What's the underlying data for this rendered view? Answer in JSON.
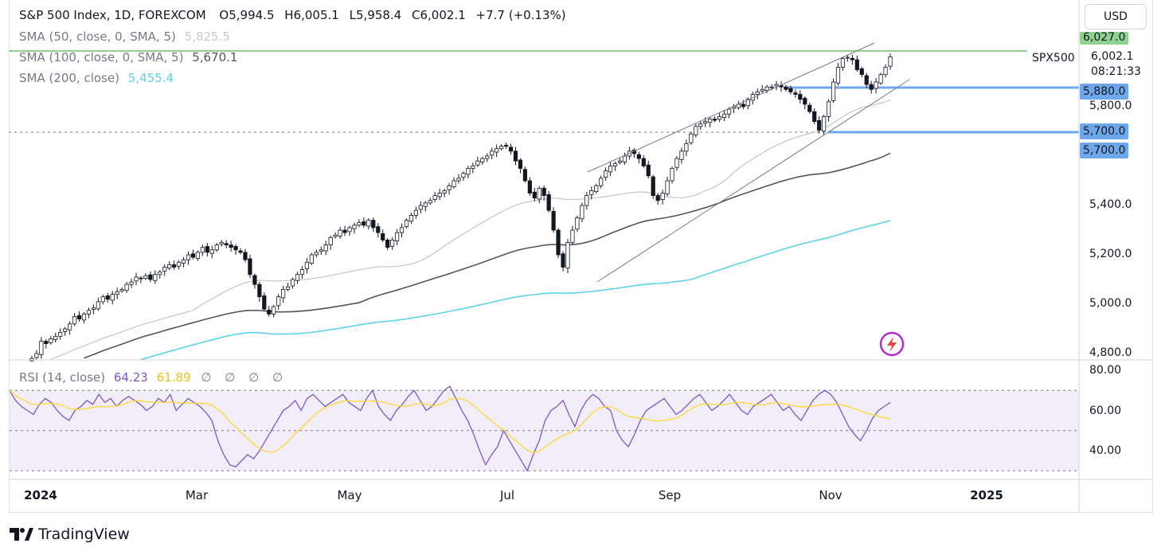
{
  "header": {
    "symbol_line": "S&P 500 Index, 1D, FOREXCOM",
    "ohlc": {
      "o_label": "O",
      "o": "5,994.5",
      "h_label": "H",
      "h": "6,005.1",
      "l_label": "L",
      "l": "5,958.4",
      "c_label": "C",
      "c": "6,002.1",
      "change": "+7.7 (+0.13%)"
    },
    "indicators": [
      {
        "label": "SMA (50, close, 0, SMA, 5)",
        "value": "5,825.5",
        "color": "#c9c9c9"
      },
      {
        "label": "SMA (100, close, 0, SMA, 5)",
        "value": "5,670.1",
        "color": "#555555"
      },
      {
        "label": "SMA (200, close)",
        "value": "5,455.4",
        "color": "#5fd3e6"
      }
    ]
  },
  "currency_button": "USD",
  "symbol_tag": "SPX500",
  "price_tags": {
    "resistance": "6,027.0",
    "last_price": "6,002.1",
    "countdown": "08:21:33",
    "support_1": "5,880.0",
    "support_2": "5,700.0",
    "support_2b": "5,700.0"
  },
  "price_axis": [
    "5,800.0",
    "5,400.0",
    "5,200.0",
    "5,000.0",
    "4,800.0"
  ],
  "rsi": {
    "label": "RSI (14, close)",
    "value": "64.23",
    "ma_value": "61.89",
    "placeholders": [
      "∅",
      "∅",
      "∅",
      "∅"
    ],
    "axis": [
      "80.00",
      "60.00",
      "40.00"
    ],
    "line_color": "#7e57c2",
    "ma_color": "#fdd835"
  },
  "date_axis": [
    "2024",
    "Mar",
    "May",
    "Jul",
    "Sep",
    "Nov",
    "2025"
  ],
  "brand": "TradingView",
  "colors": {
    "resistance_line": "#8fd18f",
    "support_line": "#6ea8ea",
    "sma50": "#c9c9c9",
    "sma100": "#555555",
    "sma200": "#5fd3e6",
    "bull": "#131722",
    "bear": "#131722"
  },
  "chart_data": [
    {
      "type": "candlestick",
      "title": "S&P 500 Index, 1D, FOREXCOM",
      "y_unit": "USD",
      "ylim": [
        4780,
        6080
      ],
      "x_labels": [
        "2024",
        "Mar",
        "May",
        "Jul",
        "Sep",
        "Nov",
        "2025"
      ],
      "closes": [
        4770,
        4780,
        4800,
        4850,
        4840,
        4860,
        4870,
        4885,
        4900,
        4920,
        4950,
        4940,
        4960,
        4975,
        4985,
        5010,
        5030,
        5020,
        5040,
        5050,
        5060,
        5080,
        5090,
        5110,
        5105,
        5115,
        5100,
        5120,
        5130,
        5150,
        5160,
        5150,
        5170,
        5180,
        5200,
        5190,
        5210,
        5230,
        5210,
        5220,
        5240,
        5250,
        5240,
        5230,
        5220,
        5210,
        5180,
        5120,
        5080,
        5030,
        4980,
        4960,
        4990,
        5030,
        5060,
        5070,
        5100,
        5120,
        5140,
        5170,
        5200,
        5210,
        5220,
        5240,
        5270,
        5280,
        5300,
        5290,
        5310,
        5320,
        5330,
        5320,
        5340,
        5310,
        5290,
        5260,
        5230,
        5260,
        5290,
        5310,
        5340,
        5360,
        5380,
        5400,
        5410,
        5420,
        5440,
        5450,
        5460,
        5480,
        5500,
        5510,
        5530,
        5550,
        5560,
        5580,
        5590,
        5600,
        5620,
        5630,
        5640,
        5640,
        5620,
        5580,
        5550,
        5500,
        5450,
        5430,
        5470,
        5440,
        5380,
        5300,
        5200,
        5150,
        5250,
        5300,
        5350,
        5400,
        5440,
        5460,
        5480,
        5510,
        5540,
        5560,
        5570,
        5580,
        5600,
        5620,
        5610,
        5590,
        5560,
        5520,
        5440,
        5420,
        5450,
        5500,
        5550,
        5590,
        5620,
        5650,
        5690,
        5720,
        5730,
        5740,
        5750,
        5745,
        5760,
        5770,
        5790,
        5800,
        5810,
        5800,
        5830,
        5850,
        5860,
        5870,
        5880,
        5880,
        5890,
        5880,
        5870,
        5860,
        5850,
        5830,
        5810,
        5780,
        5740,
        5705,
        5760,
        5820,
        5900,
        5960,
        5995,
        6000,
        5990,
        5950,
        5930,
        5890,
        5870,
        5900,
        5930,
        5960,
        6002
      ],
      "series": [
        {
          "name": "SMA (50, close, 0, SMA, 5)",
          "last": 5825.5
        },
        {
          "name": "SMA (100, close, 0, SMA, 5)",
          "last": 5670.1
        },
        {
          "name": "SMA (200, close)",
          "last": 5455.4
        }
      ],
      "horizontal_levels": [
        6027.0,
        5880.0,
        5700.0
      ]
    },
    {
      "type": "line",
      "title": "RSI (14, close)",
      "ylim": [
        30,
        85
      ],
      "levels": [
        70,
        50,
        30
      ],
      "y_ticks": [
        80,
        60,
        40
      ],
      "values": [
        70,
        65,
        62,
        60,
        58,
        63,
        66,
        64,
        60,
        57,
        55,
        60,
        62,
        65,
        63,
        68,
        64,
        66,
        62,
        65,
        67,
        65,
        63,
        60,
        62,
        66,
        64,
        68,
        60,
        63,
        66,
        64,
        62,
        59,
        55,
        45,
        38,
        33,
        32,
        35,
        38,
        36,
        40,
        45,
        50,
        55,
        60,
        62,
        65,
        60,
        66,
        68,
        65,
        62,
        64,
        66,
        68,
        64,
        62,
        60,
        66,
        70,
        62,
        58,
        55,
        60,
        63,
        67,
        70,
        65,
        60,
        62,
        66,
        70,
        72,
        66,
        60,
        55,
        48,
        40,
        33,
        38,
        42,
        50,
        45,
        40,
        35,
        30,
        38,
        45,
        55,
        60,
        62,
        65,
        58,
        52,
        60,
        65,
        68,
        66,
        62,
        60,
        50,
        45,
        42,
        48,
        55,
        60,
        62,
        64,
        66,
        62,
        58,
        60,
        63,
        66,
        68,
        64,
        60,
        62,
        65,
        68,
        64,
        60,
        58,
        62,
        64,
        66,
        68,
        64,
        60,
        62,
        58,
        55,
        60,
        65,
        68,
        70,
        68,
        64,
        58,
        52,
        48,
        45,
        50,
        56,
        60,
        62,
        64
      ],
      "ma_last": 61.89,
      "last": 64.23
    }
  ]
}
